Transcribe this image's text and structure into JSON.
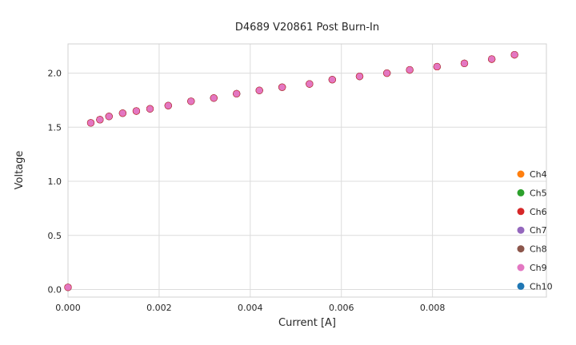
{
  "chart_data": {
    "type": "scatter",
    "title": "D4689 V20861 Post Burn-In",
    "xlabel": "Current [A]",
    "ylabel": "Voltage",
    "xlim": [
      0,
      0.0105
    ],
    "ylim": [
      -0.07,
      2.27
    ],
    "xticks": [
      0.0,
      0.002,
      0.004,
      0.006,
      0.008
    ],
    "xtick_labels": [
      "0.000",
      "0.002",
      "0.004",
      "0.006",
      "0.008"
    ],
    "yticks": [
      0.0,
      0.5,
      1.0,
      1.5,
      2.0
    ],
    "ytick_labels": [
      "0.0",
      "0.5",
      "1.0",
      "1.5",
      "2.0"
    ],
    "grid": true,
    "legend_position": "lower right",
    "overlap_note": "All channels plot identical overlapping points; Ch9 (pink) is rendered on top",
    "x": [
      0.0,
      0.0005,
      0.0007,
      0.0009,
      0.0012,
      0.0015,
      0.0018,
      0.0022,
      0.0027,
      0.0032,
      0.0037,
      0.0042,
      0.0047,
      0.0053,
      0.0058,
      0.0064,
      0.007,
      0.0075,
      0.0081,
      0.0087,
      0.0093,
      0.0098
    ],
    "y": [
      0.02,
      1.54,
      1.57,
      1.6,
      1.63,
      1.65,
      1.67,
      1.7,
      1.74,
      1.77,
      1.81,
      1.84,
      1.87,
      1.9,
      1.94,
      1.97,
      2.0,
      2.03,
      2.06,
      2.09,
      2.13,
      2.17
    ],
    "series": [
      {
        "name": "Ch4",
        "color": "#ff7f0e"
      },
      {
        "name": "Ch5",
        "color": "#2ca02c"
      },
      {
        "name": "Ch6",
        "color": "#d62728"
      },
      {
        "name": "Ch7",
        "color": "#9467bd"
      },
      {
        "name": "Ch8",
        "color": "#8c564b"
      },
      {
        "name": "Ch9",
        "color": "#e377c2"
      },
      {
        "name": "Ch10",
        "color": "#1f77b4"
      }
    ],
    "draw_order": [
      "Ch4",
      "Ch5",
      "Ch7",
      "Ch8",
      "Ch10",
      "Ch6",
      "Ch9"
    ],
    "colors": {
      "grid": "#dcdcdc",
      "frame": "#d0d0d0",
      "text": "#262626"
    }
  }
}
